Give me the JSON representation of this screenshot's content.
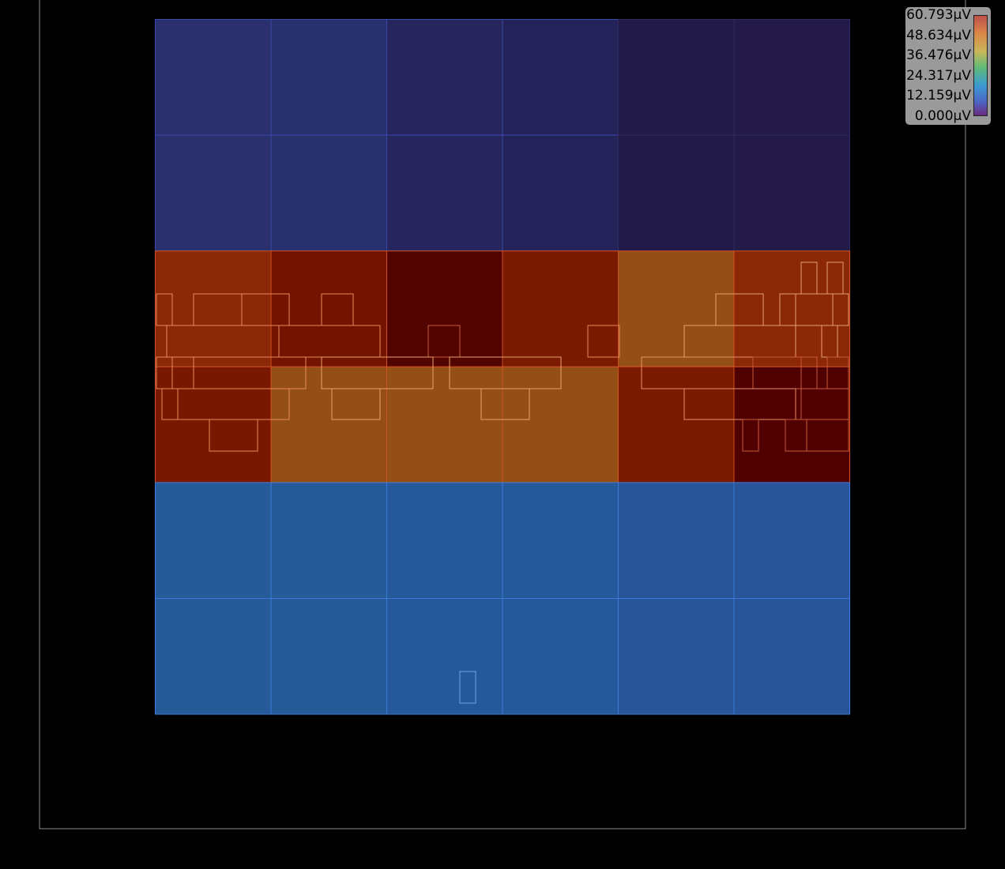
{
  "colors": {
    "background": "#000000",
    "die_outline": "#8a8a8a",
    "legend_bg": "#9a9a9a"
  },
  "chart_data": {
    "type": "heatmap",
    "title": "",
    "xlabel": "",
    "ylabel": "",
    "value_range": [
      0.0,
      60.793
    ],
    "unit": "µV",
    "rows": 6,
    "cols": 6,
    "colors": [
      [
        "#2a306e",
        "#28306e",
        "#26255e",
        "#23235a",
        "#221a48",
        "#231a48"
      ],
      [
        "#2a306e",
        "#28306e",
        "#26255e",
        "#23235a",
        "#221a48",
        "#231a48"
      ],
      [
        "#8a2808",
        "#721400",
        "#520400",
        "#7a1a00",
        "#944f16",
        "#8a2808"
      ],
      [
        "#781800",
        "#944f16",
        "#944f16",
        "#944f16",
        "#7a1a00",
        "#500000"
      ],
      [
        "#265a98",
        "#265a98",
        "#26599a",
        "#26599a",
        "#28549a",
        "#28549a"
      ],
      [
        "#265a98",
        "#265a98",
        "#26599a",
        "#26599a",
        "#28549a",
        "#28549a"
      ]
    ],
    "legend": {
      "ticks": [
        "60.793µV",
        "48.634µV",
        "36.476µV",
        "24.317µV",
        "12.159µV",
        "0.000µV"
      ],
      "placement": "top-right"
    }
  }
}
